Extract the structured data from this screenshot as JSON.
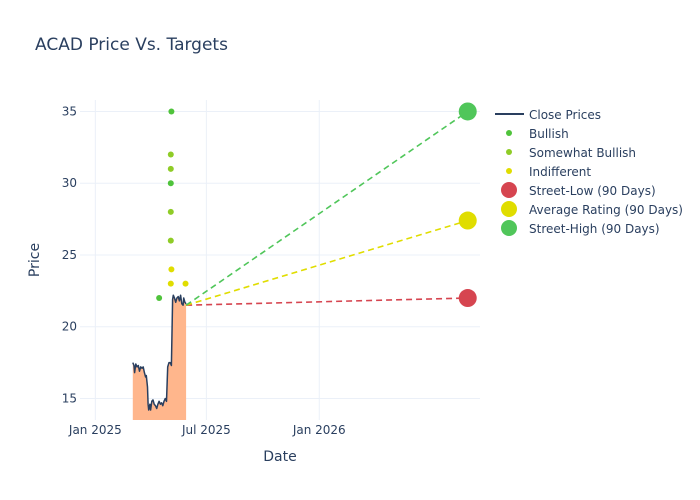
{
  "chart_data": {
    "type": "line",
    "title": "ACAD Price Vs. Targets",
    "xlabel": "Date",
    "ylabel": "Price",
    "xlim": [
      "2024-12-07",
      "2026-09-20"
    ],
    "ylim": [
      13.5,
      35.8
    ],
    "x_ticks": [
      "2025-01-01",
      "2025-07-01",
      "2026-01-01"
    ],
    "x_tick_labels": [
      "Jan 2025",
      "Jul 2025",
      "Jan 2026"
    ],
    "y_ticks": [
      15,
      20,
      25,
      30,
      35
    ],
    "grid": true,
    "legend_position": "right",
    "close_prices": {
      "name": "Close Prices",
      "color": "#2a3f5f",
      "fill_color": "#ffb68c",
      "points": [
        [
          "2025-03-03",
          17.5
        ],
        [
          "2025-03-05",
          17.3
        ],
        [
          "2025-03-06",
          16.8
        ],
        [
          "2025-03-08",
          17.4
        ],
        [
          "2025-03-10",
          17.2
        ],
        [
          "2025-03-12",
          17.3
        ],
        [
          "2025-03-14",
          16.9
        ],
        [
          "2025-03-16",
          17.2
        ],
        [
          "2025-03-18",
          17.1
        ],
        [
          "2025-03-20",
          17.2
        ],
        [
          "2025-03-22",
          16.8
        ],
        [
          "2025-03-24",
          16.5
        ],
        [
          "2025-03-25",
          16.6
        ],
        [
          "2025-03-27",
          15.8
        ],
        [
          "2025-03-28",
          14.6
        ],
        [
          "2025-03-29",
          14.2
        ],
        [
          "2025-03-31",
          14.6
        ],
        [
          "2025-04-01",
          14.2
        ],
        [
          "2025-04-03",
          14.8
        ],
        [
          "2025-04-05",
          14.9
        ],
        [
          "2025-04-07",
          14.6
        ],
        [
          "2025-04-09",
          14.5
        ],
        [
          "2025-04-11",
          14.3
        ],
        [
          "2025-04-13",
          14.6
        ],
        [
          "2025-04-15",
          14.8
        ],
        [
          "2025-04-17",
          14.6
        ],
        [
          "2025-04-19",
          14.7
        ],
        [
          "2025-04-21",
          14.5
        ],
        [
          "2025-04-23",
          14.8
        ],
        [
          "2025-04-25",
          15.0
        ],
        [
          "2025-04-27",
          14.8
        ],
        [
          "2025-04-29",
          17.2
        ],
        [
          "2025-05-01",
          17.5
        ],
        [
          "2025-05-03",
          17.5
        ],
        [
          "2025-05-05",
          17.3
        ],
        [
          "2025-05-07",
          21.9
        ],
        [
          "2025-05-08",
          22.2
        ],
        [
          "2025-05-10",
          22.0
        ],
        [
          "2025-05-12",
          21.7
        ],
        [
          "2025-05-14",
          22.0
        ],
        [
          "2025-05-16",
          22.1
        ],
        [
          "2025-05-18",
          21.8
        ],
        [
          "2025-05-20",
          22.2
        ],
        [
          "2025-05-22",
          21.6
        ],
        [
          "2025-05-24",
          21.5
        ],
        [
          "2025-05-25",
          22.0
        ],
        [
          "2025-05-27",
          21.7
        ],
        [
          "2025-05-29",
          21.6
        ]
      ]
    },
    "ratings": [
      {
        "name": "Bullish",
        "color": "#4fc33b",
        "points": [
          [
            "2025-04-15",
            22.0
          ],
          [
            "2025-05-05",
            35.0
          ],
          [
            "2025-05-04",
            30.0
          ]
        ]
      },
      {
        "name": "Somewhat Bullish",
        "color": "#8fcc27",
        "points": [
          [
            "2025-05-04",
            32.0
          ],
          [
            "2025-05-04",
            31.0
          ],
          [
            "2025-05-04",
            28.0
          ],
          [
            "2025-05-04",
            26.0
          ]
        ]
      },
      {
        "name": "Indifferent",
        "color": "#e0dd00",
        "points": [
          [
            "2025-05-05",
            24.0
          ],
          [
            "2025-05-04",
            23.0
          ],
          [
            "2025-05-28",
            23.0
          ]
        ]
      }
    ],
    "targets": [
      {
        "name": "Street-Low (90 Days)",
        "color": "#d64550",
        "value": 22.0
      },
      {
        "name": "Average Rating (90 Days)",
        "color": "#e0dd00",
        "value": 27.4
      },
      {
        "name": "Street-High (90 Days)",
        "color": "#50c65a",
        "value": 35.0
      }
    ],
    "target_line_start": [
      "2025-05-29",
      21.5
    ],
    "target_line_end_date": "2026-08-31"
  }
}
